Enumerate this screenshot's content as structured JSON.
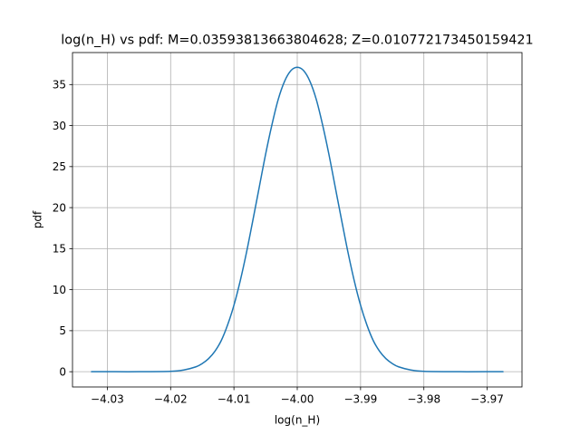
{
  "chart_data": {
    "type": "line",
    "title": "log(n_H) vs pdf: M=0.03593813663804628; Z=0.010772173450159421",
    "xlabel": "log(n_H)",
    "ylabel": "pdf",
    "xlim": [
      -4.0355,
      -3.9645
    ],
    "ylim": [
      -1.86,
      38.9
    ],
    "grid": true,
    "x_ticks": [
      -4.03,
      -4.02,
      -4.01,
      -4.0,
      -3.99,
      -3.98,
      -3.97
    ],
    "x_tick_labels": [
      "−4.03",
      "−4.02",
      "−4.01",
      "−4.00",
      "−3.99",
      "−3.98",
      "−3.97"
    ],
    "y_ticks": [
      0,
      5,
      10,
      15,
      20,
      25,
      30,
      35
    ],
    "y_tick_labels": [
      "0",
      "5",
      "10",
      "15",
      "20",
      "25",
      "30",
      "35"
    ],
    "series": [
      {
        "color": "#1f77b4",
        "x": [
          -4.0325,
          -4.03,
          -4.025,
          -4.02,
          -4.018,
          -4.016,
          -4.015,
          -4.014,
          -4.013,
          -4.012,
          -4.011,
          -4.01,
          -4.009,
          -4.008,
          -4.007,
          -4.006,
          -4.005,
          -4.004,
          -4.003,
          -4.002,
          -4.001,
          -4.0,
          -3.999,
          -3.998,
          -3.997,
          -3.996,
          -3.995,
          -3.994,
          -3.993,
          -3.992,
          -3.991,
          -3.99,
          -3.989,
          -3.988,
          -3.987,
          -3.986,
          -3.985,
          -3.984,
          -3.982,
          -3.98,
          -3.975,
          -3.97,
          -3.9675
        ],
        "y": [
          0.0,
          0.0,
          0.0,
          0.05,
          0.2,
          0.6,
          1.0,
          1.6,
          2.5,
          3.8,
          5.7,
          8.1,
          11.1,
          14.6,
          18.5,
          22.5,
          26.5,
          30.1,
          33.2,
          35.4,
          36.7,
          37.1,
          36.7,
          35.4,
          33.2,
          30.1,
          26.5,
          22.5,
          18.5,
          14.6,
          11.1,
          8.1,
          5.7,
          3.8,
          2.5,
          1.6,
          1.0,
          0.6,
          0.2,
          0.05,
          0.0,
          0.0,
          0.0
        ]
      }
    ]
  }
}
